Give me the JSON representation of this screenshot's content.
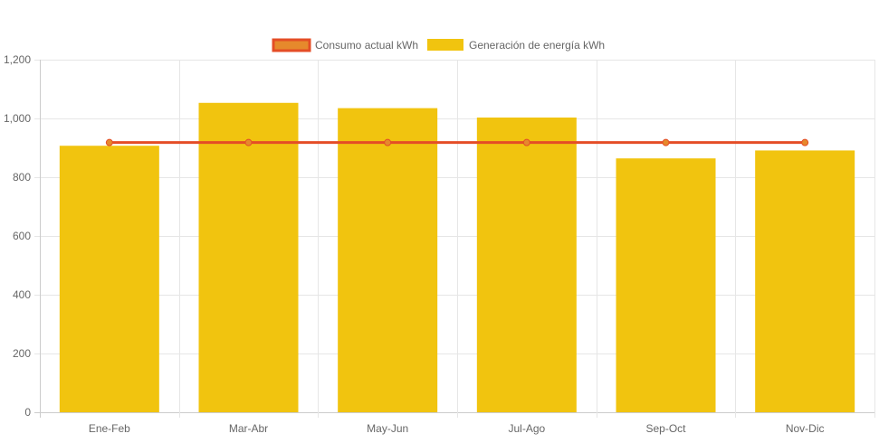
{
  "chart_data": {
    "type": "bar",
    "categories": [
      "Ene-Feb",
      "Mar-Abr",
      "May-Jun",
      "Jul-Ago",
      "Sep-Oct",
      "Nov-Dic"
    ],
    "series": [
      {
        "name": "Consumo actual kWh",
        "kind": "line",
        "color": "#e44d26",
        "fill": "#e6892c",
        "values": [
          918,
          918,
          918,
          918,
          918,
          918
        ]
      },
      {
        "name": "Generación de energía kWh",
        "kind": "bar",
        "color": "#f1c40f",
        "values": [
          907,
          1053,
          1035,
          1003,
          864,
          891
        ]
      }
    ],
    "ylim": [
      0,
      1200
    ],
    "yticks": [
      0,
      200,
      400,
      600,
      800,
      1000,
      1200
    ],
    "ytick_labels": [
      "0",
      "200",
      "400",
      "600",
      "800",
      "1,000",
      "1,200"
    ],
    "legend_position": "top",
    "grid": true
  }
}
